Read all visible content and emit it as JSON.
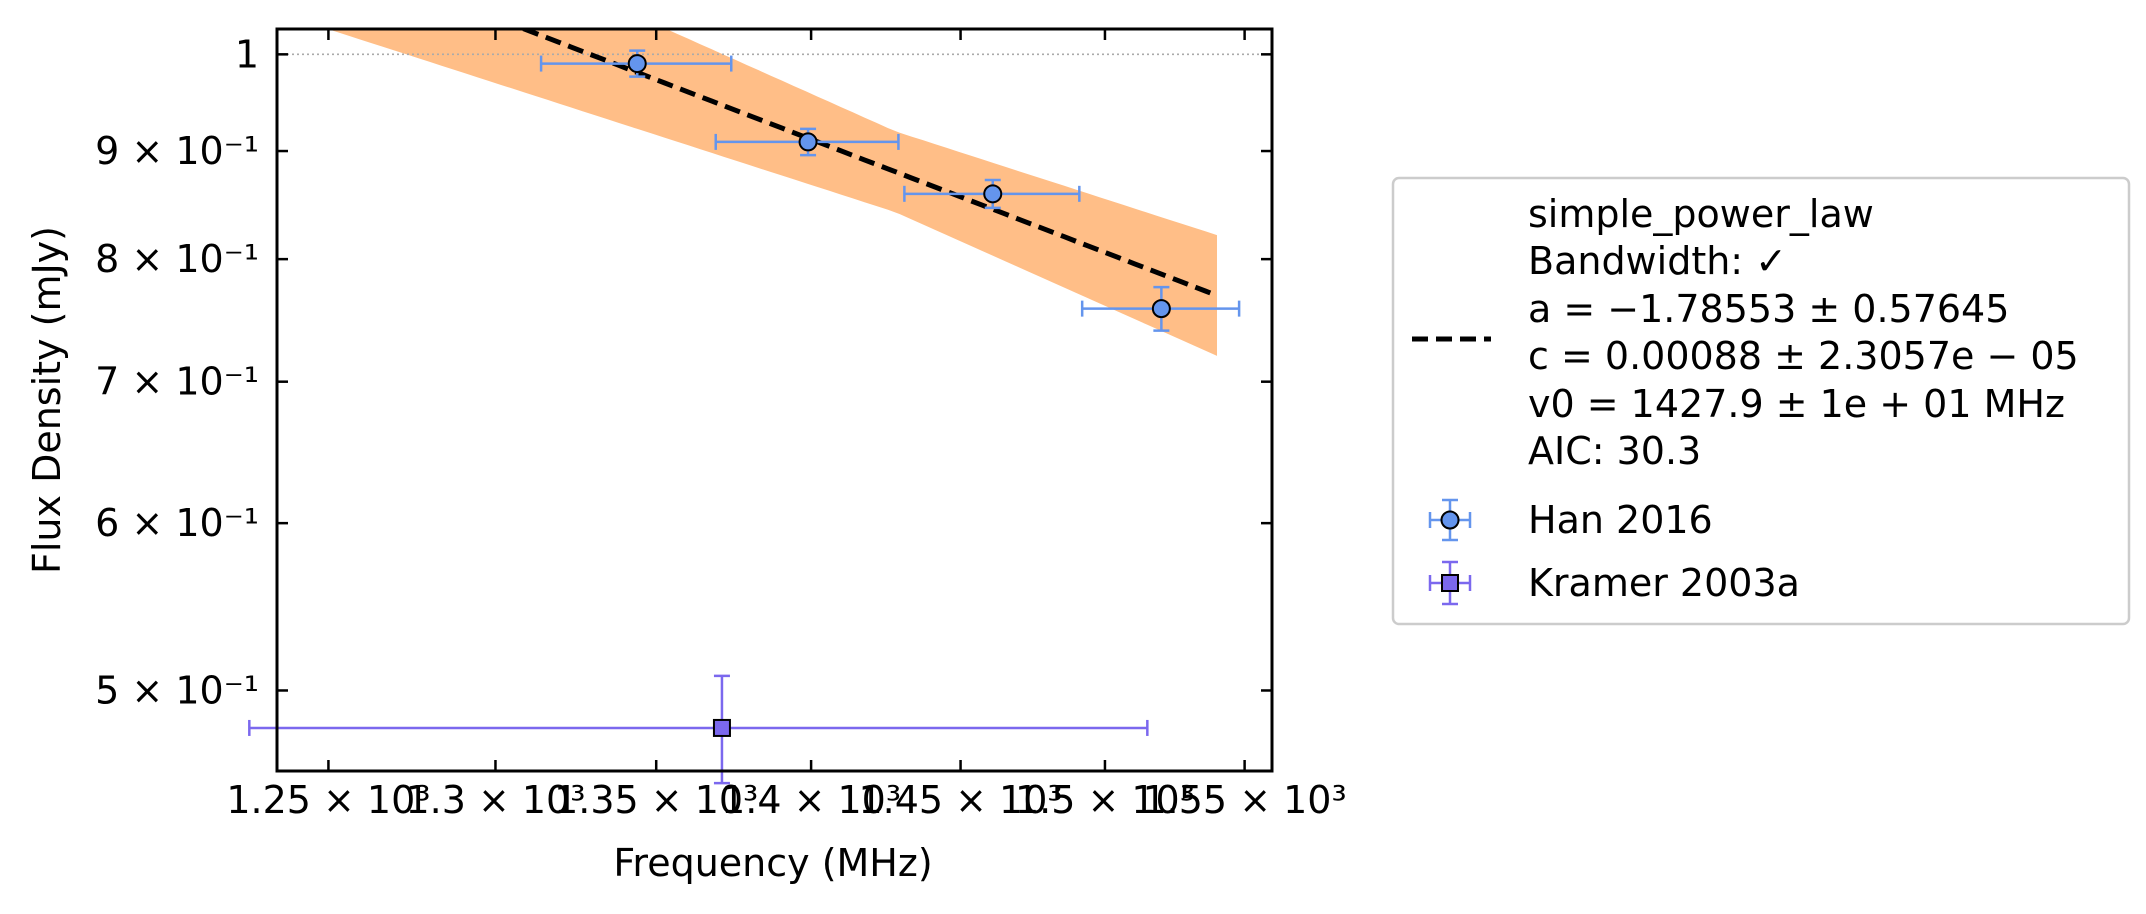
{
  "chart_data": {
    "type": "scatter",
    "xlabel": "Frequency (MHz)",
    "ylabel": "Flux Density (mJy)",
    "x_scale": "log",
    "y_scale": "log",
    "xlim": [
      1235,
      1560
    ],
    "ylim": [
      0.458,
      1.028
    ],
    "x_ticks": [
      {
        "value": 1250,
        "label": "1.25 × 10³"
      },
      {
        "value": 1300,
        "label": "1.3 × 10³"
      },
      {
        "value": 1350,
        "label": "1.35 × 10³"
      },
      {
        "value": 1400,
        "label": "1.4 × 10³"
      },
      {
        "value": 1450,
        "label": "1.45 × 10³"
      },
      {
        "value": 1500,
        "label": "1.5 × 10³"
      },
      {
        "value": 1550,
        "label": "1.55 × 10³"
      }
    ],
    "y_ticks": [
      {
        "value": 0.5,
        "label": "5 × 10⁻¹"
      },
      {
        "value": 0.6,
        "label": "6 × 10⁻¹"
      },
      {
        "value": 0.7,
        "label": "7 × 10⁻¹"
      },
      {
        "value": 0.8,
        "label": "8 × 10⁻¹"
      },
      {
        "value": 0.9,
        "label": "9 × 10⁻¹"
      },
      {
        "value": 1.0,
        "label": "1"
      }
    ],
    "reference_line_y": 1.0,
    "grid": false,
    "legend_position": "right",
    "series": [
      {
        "name": "Han 2016",
        "marker": "circle",
        "color": "#6495ed",
        "points": [
          {
            "x": 1344,
            "y": 0.99,
            "xerr": 30,
            "yerr": 0.014
          },
          {
            "x": 1399,
            "y": 0.909,
            "xerr": 30,
            "yerr": 0.013
          },
          {
            "x": 1461,
            "y": 0.859,
            "xerr": 30,
            "yerr": 0.013
          },
          {
            "x": 1520,
            "y": 0.758,
            "xerr": 28,
            "yerr": 0.018
          }
        ]
      },
      {
        "name": "Kramer 2003a",
        "marker": "square",
        "color": "#7b68ee",
        "points": [
          {
            "x": 1371,
            "y": 0.48,
            "xerr": 144,
            "yerr": 0.028
          }
        ]
      }
    ],
    "fit": {
      "model": "simple_power_law",
      "line_color": "#000000",
      "band_color": "#ffbe87",
      "legend_lines": [
        "simple_power_law",
        "Bandwidth: ✓",
        "a = −1.78553 ± 0.57645",
        "c = 0.00088 ± 2.3057e − 05",
        "v0 = 1427.9 ± 1e + 01 MHz",
        "AIC: 30.3"
      ],
      "a": -1.78553,
      "a_err": 0.57645,
      "c": 0.00088,
      "c_err": 2.3057e-05,
      "v0": 1427.9,
      "v0_err": 10,
      "aic": 30.3
    }
  }
}
